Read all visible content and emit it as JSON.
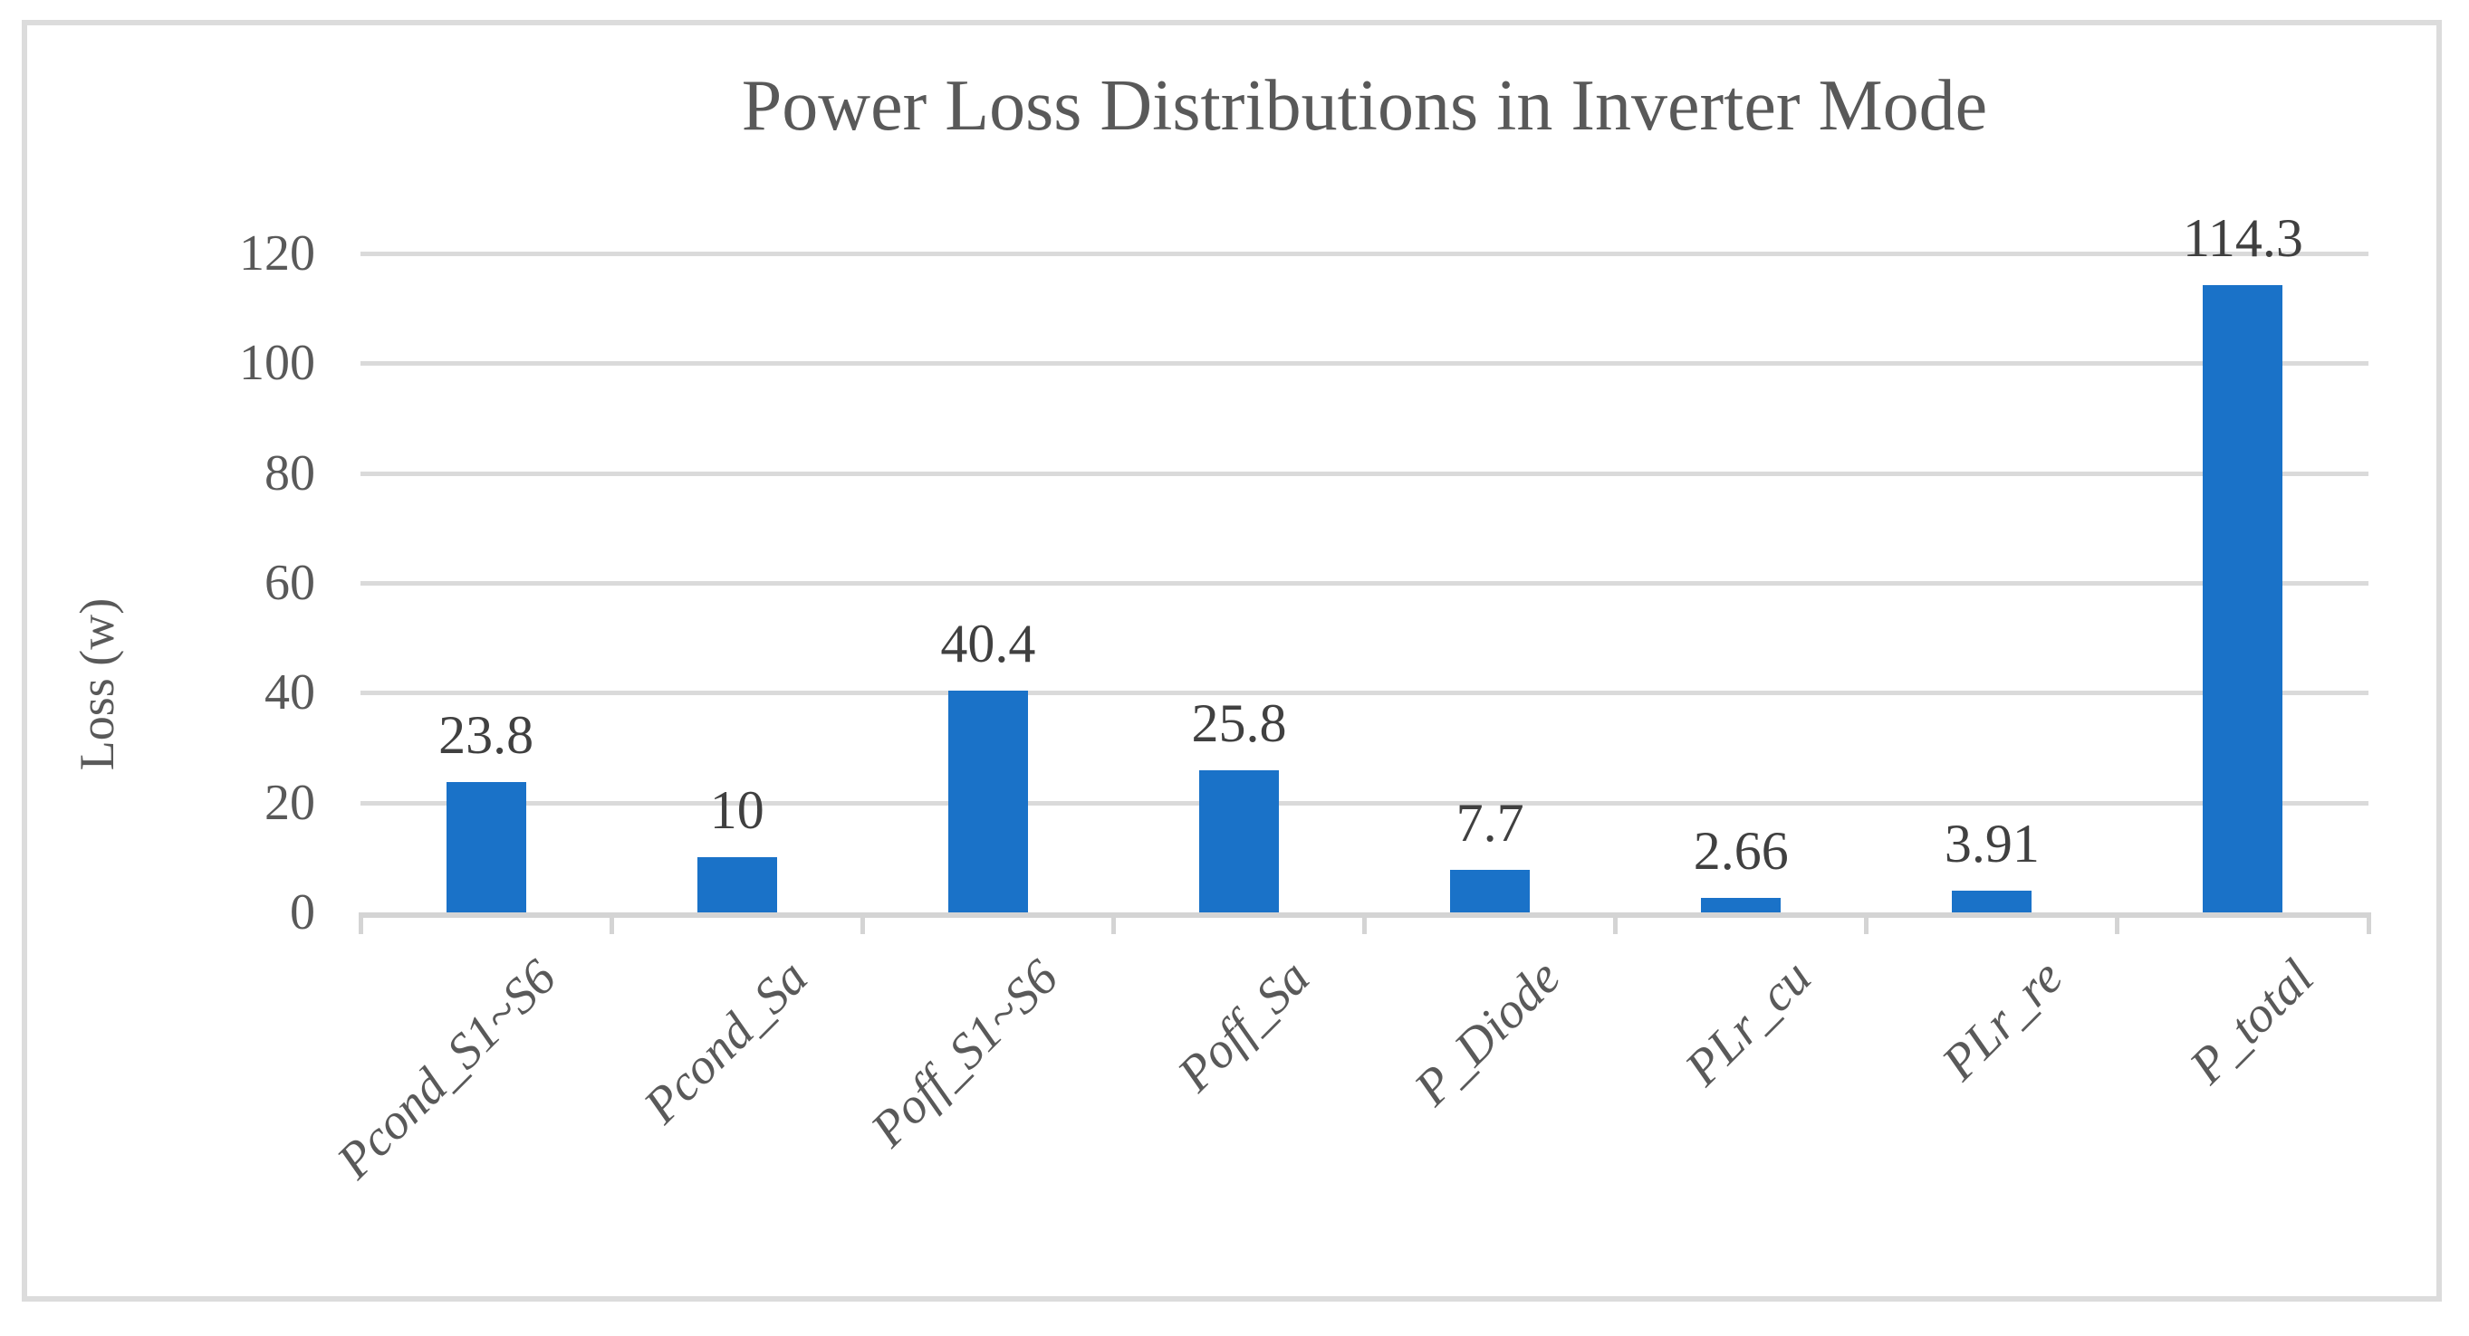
{
  "chart_data": {
    "type": "bar",
    "title": "Power Loss Distributions in Inverter Mode",
    "xlabel": "",
    "ylabel": "Loss (w)",
    "categories": [
      "Pcond_S1~S6",
      "Pcond_Sa",
      "Poff_S1~S6",
      "Poff_Sa",
      "P_Diode",
      "PLr_cu",
      "PLr_re",
      "P_total"
    ],
    "values": [
      23.8,
      10,
      40.4,
      25.8,
      7.7,
      2.66,
      3.91,
      114.3
    ],
    "data_labels": [
      "23.8",
      "10",
      "40.4",
      "25.8",
      "7.7",
      "2.66",
      "3.91",
      "114.3"
    ],
    "y_ticks": [
      0,
      20,
      40,
      60,
      80,
      100,
      120
    ],
    "ylim": [
      0,
      120
    ],
    "grid": true,
    "legend_position": "none",
    "bar_color": "#1a72c8",
    "gridline_color": "#dadada",
    "axis_line_color": "#d4d4d4",
    "frame_border_color": "#dcdcdc",
    "title_color": "#595959",
    "tick_label_color": "#595959",
    "data_label_color": "#404040"
  }
}
